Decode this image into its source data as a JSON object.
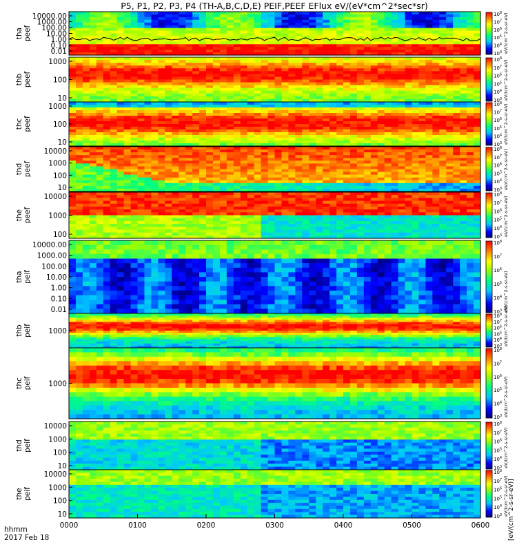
{
  "title": "P5, P1, P2, P3, P4 (TH-A,B,C,D,E) PEIF,PEEF EFlux eV/(eV*cm^2*sec*sr)",
  "x_axis": {
    "unit_label": "hhmm",
    "date_label": "2017 Feb 18",
    "ticks": [
      "0000",
      "0100",
      "0200",
      "0300",
      "0400",
      "0500",
      "0600"
    ]
  },
  "colorbar_unit_label": "eV/(cm^2-s-sr-eV)",
  "colorbar_unit_bracketed": "[eV/(cm^2-s-sr-eV)]",
  "colorbar_tick_labels": [
    "10^3",
    "10^4",
    "10^5",
    "10^6",
    "10^7",
    "10^8"
  ],
  "chart_data": [
    {
      "type": "heatmap",
      "panel": "tha-peef",
      "ylabel": "tha peef",
      "yscale": "log",
      "y_ticks": [
        "10000.00",
        "1000.00",
        "100.00",
        "10.00",
        "1.00",
        "0.10",
        "0.01"
      ],
      "has_line": true,
      "colorbar_ticks": [
        "10^3",
        "10^4",
        "10^5",
        "10^6",
        "10^7",
        "10^8"
      ]
    },
    {
      "type": "heatmap",
      "panel": "thb-peef",
      "ylabel": "thb peef",
      "yscale": "log",
      "y_ticks": [
        "1000",
        "100",
        "10"
      ],
      "colorbar_ticks": [
        "10^3",
        "10^4",
        "10^5",
        "10^6",
        "10^7",
        "10^8"
      ]
    },
    {
      "type": "heatmap",
      "panel": "thc-peef",
      "ylabel": "thc peef",
      "yscale": "log",
      "y_ticks": [
        "1000",
        "100",
        "10"
      ],
      "colorbar_ticks": [
        "10^3",
        "10^4",
        "10^5",
        "10^6",
        "10^7",
        "10^8"
      ]
    },
    {
      "type": "heatmap",
      "panel": "thd-peef",
      "ylabel": "thd peef",
      "yscale": "log",
      "y_ticks": [
        "10000",
        "1000",
        "100",
        "10"
      ],
      "colorbar_ticks": [
        "10^3",
        "10^4",
        "10^5",
        "10^6",
        "10^7",
        "10^8"
      ]
    },
    {
      "type": "heatmap",
      "panel": "the-peef",
      "ylabel": "the peef",
      "yscale": "log",
      "y_ticks": [
        "10000",
        "1000",
        "100"
      ],
      "colorbar_ticks": [
        "10^3",
        "10^4",
        "10^5",
        "10^6",
        "10^7",
        "10^8"
      ]
    },
    {
      "type": "heatmap",
      "panel": "tha-peif",
      "ylabel": "tha peif",
      "yscale": "log",
      "y_ticks": [
        "10000.00",
        "1000.00",
        "100.00",
        "10.00",
        "1.00",
        "0.10",
        "0.01"
      ],
      "colorbar_ticks": [
        "10^3",
        "10^4",
        "10^5",
        "10^6",
        "10^7",
        "10^8"
      ]
    },
    {
      "type": "heatmap",
      "panel": "thb-peif",
      "ylabel": "thb peif",
      "yscale": "log",
      "y_ticks": [
        "1000"
      ],
      "colorbar_ticks": [
        "10^3",
        "10^4",
        "10^5",
        "10^6",
        "10^7",
        "10^8"
      ]
    },
    {
      "type": "heatmap",
      "panel": "thc-peif",
      "ylabel": "thc peif",
      "yscale": "log",
      "y_ticks": [
        "1000"
      ],
      "colorbar_ticks": [
        "10^3",
        "10^4",
        "10^5",
        "10^6",
        "10^7",
        "10^8"
      ]
    },
    {
      "type": "heatmap",
      "panel": "thd-peif",
      "ylabel": "thd peif",
      "yscale": "log",
      "y_ticks": [
        "10000",
        "1000",
        "100",
        "10"
      ],
      "colorbar_ticks": [
        "10^3",
        "10^4",
        "10^5",
        "10^6",
        "10^7",
        "10^8"
      ]
    },
    {
      "type": "heatmap",
      "panel": "the-peif",
      "ylabel": "the peif",
      "yscale": "log",
      "y_ticks": [
        "10000",
        "1000",
        "100",
        "10"
      ],
      "colorbar_ticks": [
        "10^3",
        "10^4",
        "10^5",
        "10^6",
        "10^7",
        "10^8"
      ]
    }
  ]
}
